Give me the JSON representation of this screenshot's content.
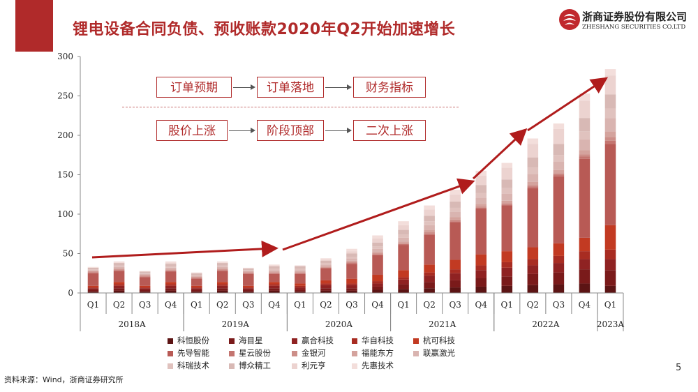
{
  "slide": {
    "title": "锂电设备合同负债、预收账款2020年Q2开始加速增长",
    "logo_cn": "浙商证券股份有限公司",
    "logo_en": "ZHESHANG SECURITIES CO.LTD",
    "source": "资料来源：Wind，浙商证券研究所",
    "page_number": "5",
    "colors": {
      "brand": "#b02a2a",
      "trend_arrow": "#b01c1c"
    }
  },
  "flow": {
    "row1": [
      "订单预期",
      "订单落地",
      "财务指标"
    ],
    "row2": [
      "股价上涨",
      "阶段顶部",
      "二次上涨"
    ]
  },
  "chart_data": {
    "type": "bar",
    "stacked": true,
    "ylim": [
      0,
      300
    ],
    "yticks": [
      0,
      50,
      100,
      150,
      200,
      250,
      300
    ],
    "categories": [
      "Q1",
      "Q2",
      "Q3",
      "Q4",
      "Q1",
      "Q2",
      "Q3",
      "Q4",
      "Q1",
      "Q2",
      "Q3",
      "Q4",
      "Q1",
      "Q2",
      "Q3",
      "Q4",
      "Q1",
      "Q2",
      "Q3",
      "Q4",
      "Q1"
    ],
    "year_groups": [
      {
        "label": "2018A",
        "quarters": 4
      },
      {
        "label": "2019A",
        "quarters": 4
      },
      {
        "label": "2020A",
        "quarters": 4
      },
      {
        "label": "2021A",
        "quarters": 4
      },
      {
        "label": "2022A",
        "quarters": 4
      },
      {
        "label": "2023A",
        "quarters": 1
      }
    ],
    "series": [
      {
        "name": "科恒股份",
        "color": "#5c1414",
        "values": [
          2,
          3,
          2,
          3,
          2,
          3,
          2,
          3,
          2,
          3,
          3,
          4,
          5,
          6,
          7,
          8,
          9,
          10,
          11,
          12,
          9
        ]
      },
      {
        "name": "海目星",
        "color": "#7a1a1a",
        "values": [
          2,
          3,
          2,
          3,
          2,
          3,
          2,
          3,
          2,
          3,
          3,
          4,
          6,
          8,
          9,
          11,
          12,
          14,
          15,
          18,
          20
        ]
      },
      {
        "name": "赢合科技",
        "color": "#8f2222",
        "values": [
          2,
          3,
          2,
          3,
          2,
          3,
          2,
          3,
          3,
          4,
          4,
          4,
          6,
          8,
          9,
          10,
          11,
          11,
          12,
          13,
          14
        ]
      },
      {
        "name": "华自科技",
        "color": "#a82c22",
        "values": [
          1,
          2,
          1,
          2,
          1,
          2,
          1,
          2,
          2,
          2,
          2,
          3,
          3,
          4,
          5,
          6,
          7,
          8,
          9,
          10,
          12
        ]
      },
      {
        "name": "杭可科技",
        "color": "#c23a22",
        "values": [
          2,
          3,
          2,
          3,
          2,
          3,
          2,
          3,
          3,
          4,
          6,
          8,
          9,
          10,
          12,
          14,
          14,
          15,
          16,
          17,
          31
        ]
      },
      {
        "name": "先导智能",
        "color": "#b85a55",
        "values": [
          16,
          14,
          11,
          13,
          9,
          14,
          15,
          10,
          12,
          15,
          19,
          25,
          32,
          38,
          48,
          58,
          58,
          75,
          85,
          100,
          103
        ]
      },
      {
        "name": "星云股份",
        "color": "#c47570",
        "values": [
          1,
          1,
          1,
          1,
          1,
          1,
          1,
          1,
          1,
          1,
          1,
          1,
          1,
          1,
          1,
          1,
          1,
          2,
          2,
          3,
          4
        ]
      },
      {
        "name": "金银河",
        "color": "#cc8e88",
        "values": [
          1,
          1,
          1,
          1,
          1,
          1,
          1,
          1,
          1,
          1,
          1,
          1,
          1,
          2,
          2,
          2,
          2,
          2,
          2,
          3,
          5
        ]
      },
      {
        "name": "福能东方",
        "color": "#d4a39d",
        "values": [
          1,
          1,
          1,
          1,
          1,
          1,
          1,
          1,
          1,
          1,
          2,
          2,
          2,
          3,
          3,
          3,
          3,
          4,
          4,
          5,
          7
        ]
      },
      {
        "name": "联赢激光",
        "color": "#d9b4b0",
        "values": [
          1,
          2,
          1,
          2,
          1,
          2,
          1,
          2,
          2,
          2,
          3,
          4,
          5,
          6,
          7,
          8,
          9,
          10,
          11,
          14,
          17
        ]
      },
      {
        "name": "科瑞技术",
        "color": "#e0c2be",
        "values": [
          1,
          2,
          1,
          2,
          1,
          2,
          1,
          2,
          2,
          2,
          2,
          3,
          4,
          5,
          5,
          6,
          7,
          8,
          8,
          10,
          12
        ]
      },
      {
        "name": "博众精工",
        "color": "#d8b9b5",
        "values": [
          2,
          3,
          2,
          3,
          2,
          3,
          2,
          3,
          3,
          3,
          4,
          5,
          6,
          7,
          8,
          10,
          11,
          13,
          14,
          17,
          18
        ]
      },
      {
        "name": "利元亨",
        "color": "#ecd3d0",
        "values": [
          0,
          0,
          0,
          1,
          0,
          0,
          0,
          0,
          0,
          1,
          3,
          5,
          6,
          8,
          9,
          12,
          15,
          17,
          19,
          22,
          24
        ]
      },
      {
        "name": "先惠技术",
        "color": "#f3dedb",
        "values": [
          1,
          2,
          1,
          2,
          1,
          2,
          1,
          2,
          1,
          2,
          3,
          4,
          5,
          5,
          6,
          6,
          6,
          7,
          7,
          9,
          8
        ]
      }
    ]
  }
}
